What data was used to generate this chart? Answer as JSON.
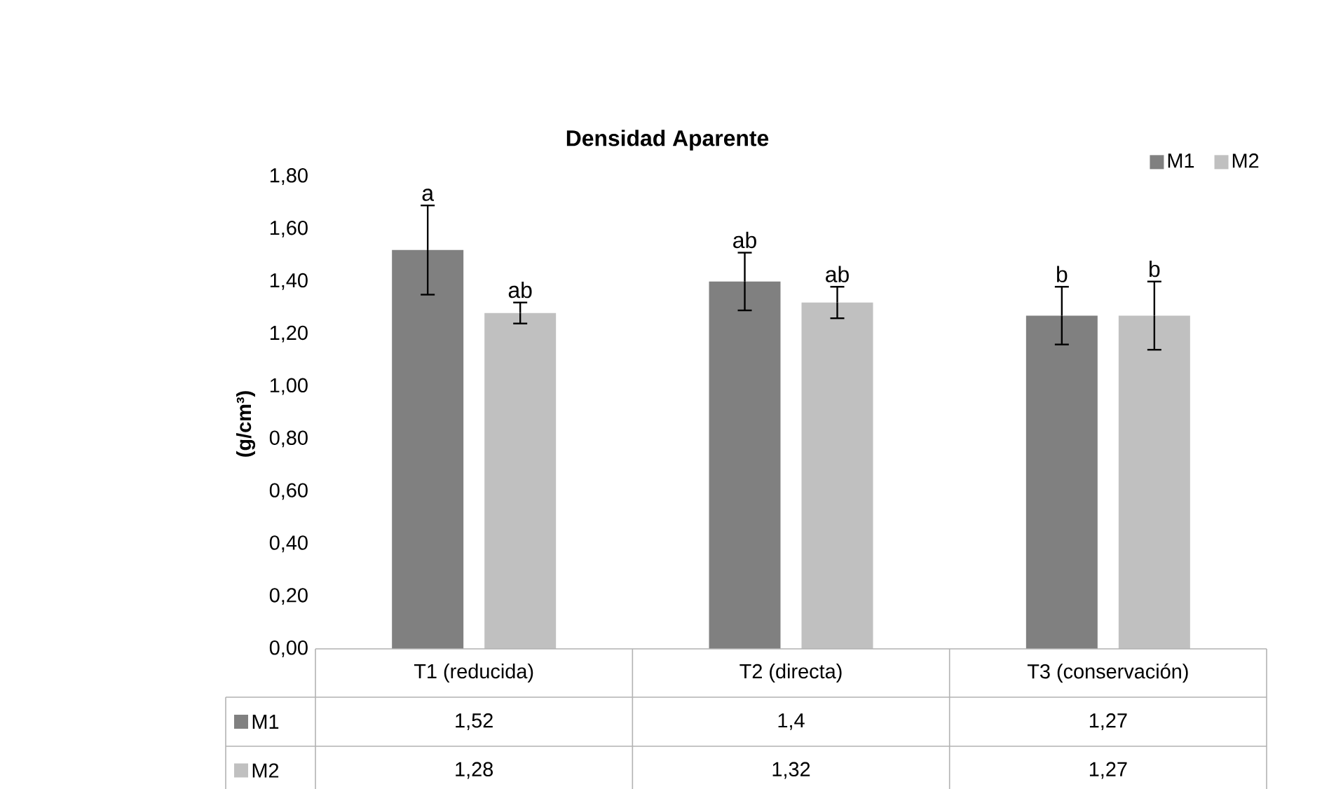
{
  "chart_data": {
    "type": "bar",
    "title": "Densidad Aparente",
    "ylabel": "(g/cm³)",
    "categories": [
      "T1 (reducida)",
      "T2 (directa)",
      "T3 (conservación)"
    ],
    "series": [
      {
        "name": "M1",
        "color": "#808080",
        "values": [
          1.52,
          1.4,
          1.27
        ],
        "errors": [
          0.17,
          0.11,
          0.11
        ],
        "value_labels": [
          "1,52",
          "1,4",
          "1,27"
        ]
      },
      {
        "name": "M2",
        "color": "#c0c0c0",
        "values": [
          1.28,
          1.32,
          1.27
        ],
        "errors": [
          0.04,
          0.06,
          0.13
        ],
        "value_labels": [
          "1,28",
          "1,32",
          "1,27"
        ]
      }
    ],
    "ylim": [
      0,
      1.8
    ],
    "yticks": [
      {
        "value": 0,
        "label": "0,00"
      },
      {
        "value": 0.2,
        "label": "0,20"
      },
      {
        "value": 0.4,
        "label": "0,40"
      },
      {
        "value": 0.6,
        "label": "0,60"
      },
      {
        "value": 0.8,
        "label": "0,80"
      },
      {
        "value": 1.0,
        "label": "1,00"
      },
      {
        "value": 1.2,
        "label": "1,20"
      },
      {
        "value": 1.4,
        "label": "1,40"
      },
      {
        "value": 1.6,
        "label": "1,60"
      },
      {
        "value": 1.8,
        "label": "1,80"
      }
    ],
    "annotations": [
      "a",
      "ab",
      "ab",
      "ab",
      "b",
      "b"
    ],
    "grid": false,
    "legend": "top right"
  }
}
